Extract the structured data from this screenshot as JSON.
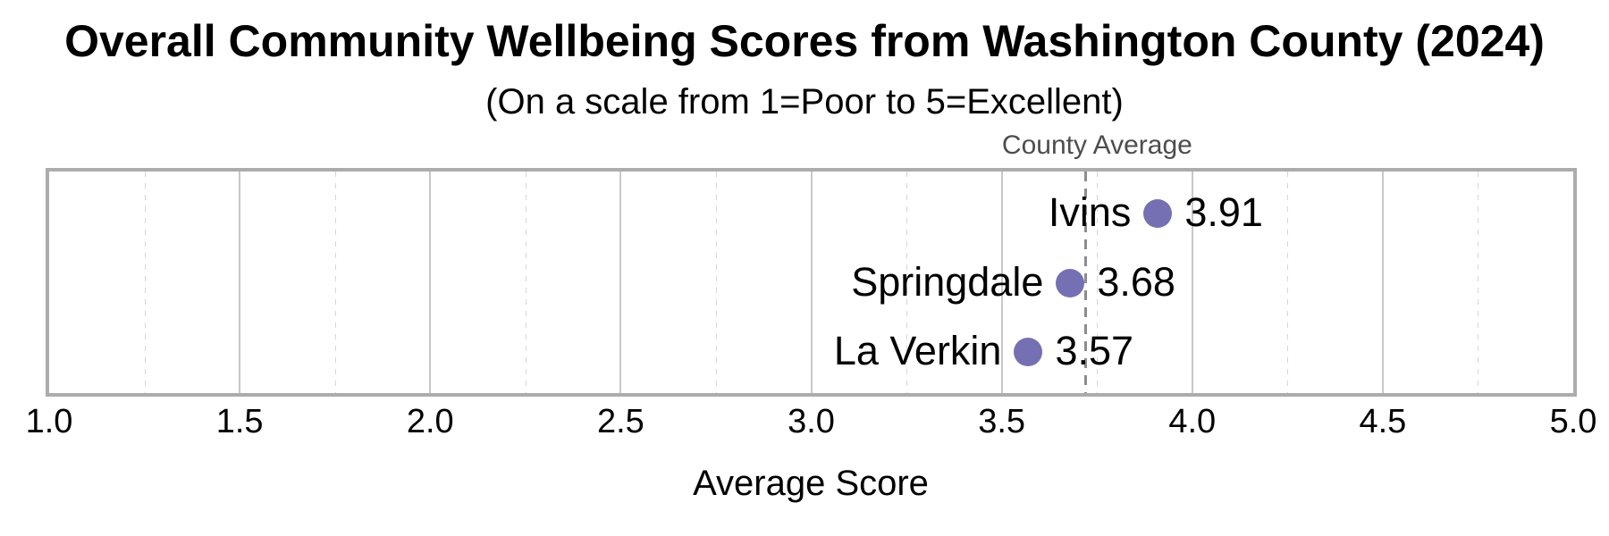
{
  "chart_data": {
    "type": "scatter",
    "title": "Overall Community Wellbeing Scores from Washington County (2024)",
    "subtitle": "(On a scale from 1=Poor to 5=Excellent)",
    "xlabel": "Average Score",
    "xlim": [
      1.0,
      5.0
    ],
    "x_ticks": [
      {
        "value": 1.0,
        "label": "1.0"
      },
      {
        "value": 1.5,
        "label": "1.5"
      },
      {
        "value": 2.0,
        "label": "2.0"
      },
      {
        "value": 2.5,
        "label": "2.5"
      },
      {
        "value": 3.0,
        "label": "3.0"
      },
      {
        "value": 3.5,
        "label": "3.5"
      },
      {
        "value": 4.0,
        "label": "4.0"
      },
      {
        "value": 4.5,
        "label": "4.5"
      },
      {
        "value": 5.0,
        "label": "5.0"
      }
    ],
    "grid": {
      "major": [
        1.5,
        2.0,
        2.5,
        3.0,
        3.5,
        4.0,
        4.5
      ],
      "minor": [
        1.25,
        1.75,
        2.25,
        2.75,
        3.25,
        3.75,
        4.25,
        4.75
      ]
    },
    "points": [
      {
        "name": "Ivins",
        "value": 3.91,
        "value_label": "3.91"
      },
      {
        "name": "Springdale",
        "value": 3.68,
        "value_label": "3.68"
      },
      {
        "name": "La Verkin",
        "value": 3.57,
        "value_label": "3.57"
      }
    ],
    "reference_line": {
      "label": "County Average",
      "value": 3.72
    },
    "colors": {
      "dot": "#7570b3",
      "grid_major": "#c8c8c8",
      "grid_minor": "#d6d6d6",
      "plot_border": "#acacac",
      "reference_line": "#8c8c8c",
      "reference_label": "#4d4d4d",
      "text": "#000000"
    }
  }
}
